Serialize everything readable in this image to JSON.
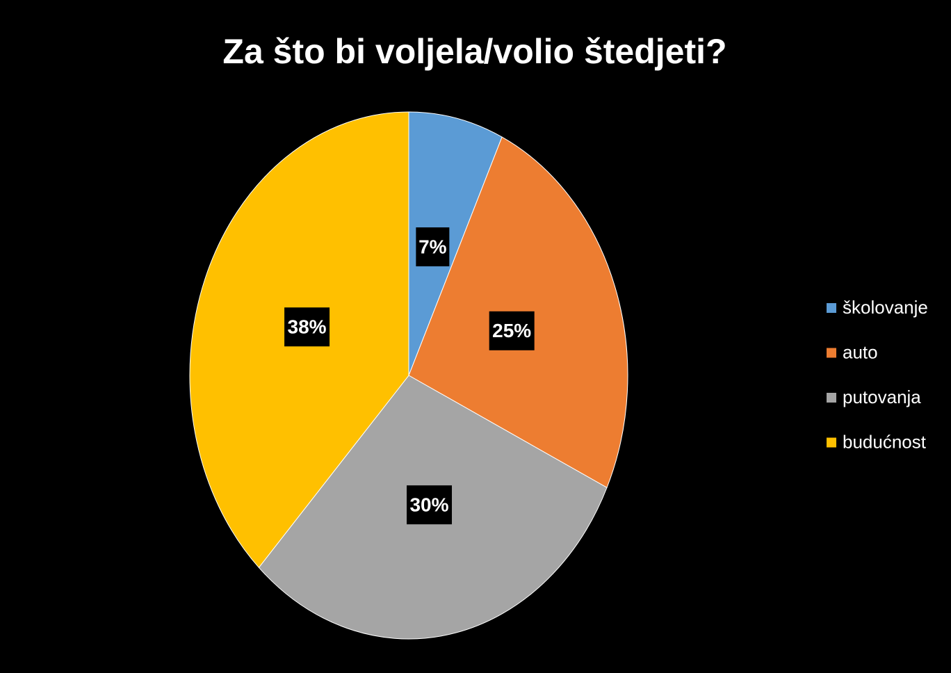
{
  "chart_data": {
    "type": "pie",
    "title": "Za što bi voljela/volio štedjeti?",
    "categories": [
      "školovanje",
      "auto",
      "putovanja",
      "budućnost"
    ],
    "values": [
      7,
      25,
      30,
      38
    ],
    "value_labels": [
      "7%",
      "25%",
      "30%",
      "38%"
    ],
    "colors": [
      "#5b9bd5",
      "#ed7d31",
      "#a5a5a5",
      "#ffc000"
    ],
    "legend": "right"
  }
}
